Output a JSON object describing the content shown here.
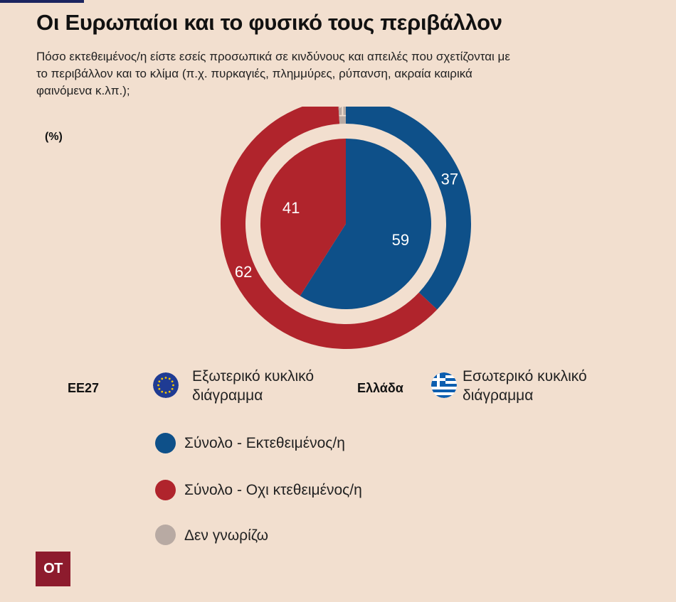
{
  "title": "Οι Ευρωπαίοι και το φυσικό τους περιβάλλον",
  "subtitle": "Πόσο εκτεθειμένος/η είστε εσείς προσωπικά σε κινδύνους και απειλές που σχετίζονται με το περιβάλλον και το κλίμα (π.χ.  πυρκαγιές, πλημμύρες, ρύπανση, ακραία καιρικά φαινόμενα κ.λπ.);",
  "unit": "(%)",
  "colors": {
    "exposed": "#0e5089",
    "not_exposed": "#b0242c",
    "dont_know": "#b8aaa3",
    "background": "#f2dfcf"
  },
  "legend": {
    "eu_label": "ΕΕ27",
    "eu_desc": "Εξωτερικό κυκλικό διάγραμμα",
    "gr_label": "Ελλάδα",
    "gr_desc": "Εσωτερικό κυκλικό διάγραμμα",
    "items": [
      {
        "label": "Σύνολο - Εκτεθειμένος/η",
        "color": "#0e5089"
      },
      {
        "label": "Σύνολο - Οχι κτεθειμένος/η",
        "color": "#b0242c"
      },
      {
        "label": "Δεν γνωρίζω",
        "color": "#b8aaa3"
      }
    ]
  },
  "logo_text": "ΟΤ",
  "chart_data": {
    "type": "pie",
    "categories": [
      "Σύνολο - Εκτεθειμένος/η",
      "Σύνολο - Οχι κτεθειμένος/η",
      "Δεν γνωρίζω"
    ],
    "series": [
      {
        "name": "ΕΕ27",
        "values": [
          37,
          62,
          1
        ]
      },
      {
        "name": "Ελλάδα",
        "values": [
          59,
          41,
          0
        ]
      }
    ]
  }
}
